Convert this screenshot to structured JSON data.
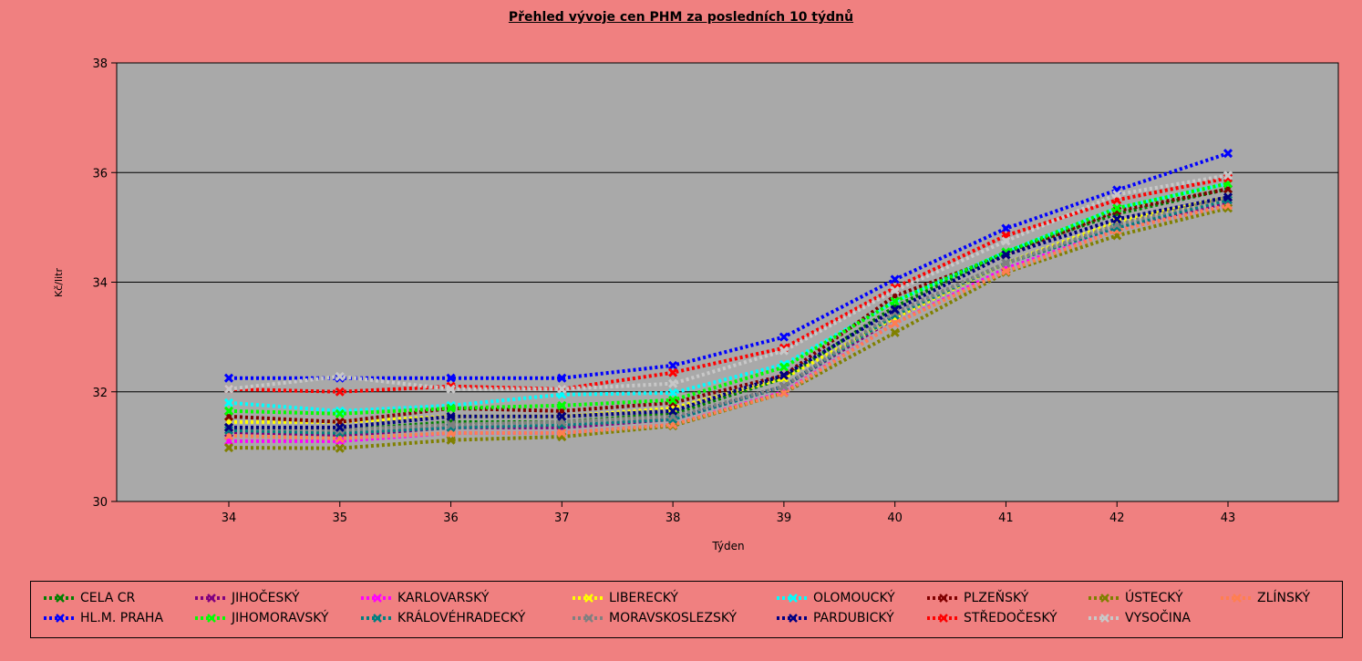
{
  "chart_data": {
    "type": "line",
    "title": "Přehled vývoje cen PHM za posledních 10 týdnů",
    "xlabel": "Týden",
    "ylabel": "Kč/litr",
    "x": [
      34,
      35,
      36,
      37,
      38,
      39,
      40,
      41,
      42,
      43
    ],
    "ylim": [
      30,
      38
    ],
    "yticks": [
      30,
      32,
      34,
      36,
      38
    ],
    "grid": true,
    "legend_position": "bottom",
    "series": [
      {
        "name": "CELA CR",
        "color": "#008000",
        "values": [
          31.35,
          31.3,
          31.45,
          31.45,
          31.6,
          32.25,
          33.55,
          34.55,
          35.25,
          35.7
        ]
      },
      {
        "name": "JIHOČESKÝ",
        "color": "#800080",
        "values": [
          31.25,
          31.2,
          31.35,
          31.35,
          31.5,
          32.1,
          33.35,
          34.35,
          35.0,
          35.45
        ]
      },
      {
        "name": "KARLOVARSKÝ",
        "color": "#FF00FF",
        "values": [
          31.1,
          31.1,
          31.25,
          31.25,
          31.4,
          32.0,
          33.25,
          34.25,
          34.95,
          35.4
        ]
      },
      {
        "name": "LIBERECKÝ",
        "color": "#FFFF00",
        "values": [
          31.45,
          31.45,
          31.55,
          31.55,
          31.7,
          32.25,
          33.35,
          34.35,
          35.1,
          35.55
        ]
      },
      {
        "name": "OLOMOUCKÝ",
        "color": "#00FFFF",
        "values": [
          31.8,
          31.65,
          31.75,
          31.95,
          31.98,
          32.5,
          33.65,
          34.55,
          35.35,
          35.8
        ]
      },
      {
        "name": "PLZEŇSKÝ",
        "color": "#800000",
        "values": [
          31.55,
          31.45,
          31.7,
          31.65,
          31.8,
          32.3,
          33.75,
          34.5,
          35.3,
          35.7
        ]
      },
      {
        "name": "ÚSTECKÝ",
        "color": "#808000",
        "values": [
          30.98,
          30.97,
          31.12,
          31.18,
          31.38,
          31.98,
          33.08,
          34.18,
          34.85,
          35.35
        ]
      },
      {
        "name": "ZLÍNSKÝ",
        "color": "#FF7F50",
        "values": [
          31.2,
          31.15,
          31.25,
          31.25,
          31.4,
          31.98,
          33.25,
          34.2,
          34.95,
          35.4
        ]
      },
      {
        "name": "HL.M. PRAHA",
        "color": "#0000FF",
        "values": [
          32.25,
          32.25,
          32.25,
          32.25,
          32.48,
          33.0,
          34.05,
          34.98,
          35.68,
          36.35
        ]
      },
      {
        "name": "JIHOMORAVSKÝ",
        "color": "#00FF00",
        "values": [
          31.65,
          31.6,
          31.7,
          31.75,
          31.85,
          32.45,
          33.65,
          34.55,
          35.35,
          35.8
        ]
      },
      {
        "name": "KRÁLOVÉHRADECKÝ",
        "color": "#008080",
        "values": [
          31.3,
          31.25,
          31.35,
          31.4,
          31.5,
          32.1,
          33.4,
          34.35,
          35.0,
          35.5
        ]
      },
      {
        "name": "MORAVSKOSLEZSKÝ",
        "color": "#808080",
        "values": [
          31.35,
          31.3,
          31.4,
          31.45,
          31.55,
          32.1,
          33.45,
          34.35,
          35.05,
          35.55
        ]
      },
      {
        "name": "PARDUBICKÝ",
        "color": "#000080",
        "values": [
          31.35,
          31.35,
          31.55,
          31.55,
          31.65,
          32.3,
          33.5,
          34.5,
          35.15,
          35.55
        ]
      },
      {
        "name": "STŘEDOČESKÝ",
        "color": "#FF0000",
        "values": [
          32.05,
          32.0,
          32.1,
          32.05,
          32.35,
          32.8,
          33.9,
          34.85,
          35.5,
          35.9
        ]
      },
      {
        "name": "VYSOČINA",
        "color": "#C8C8C8",
        "values": [
          32.05,
          32.28,
          32.05,
          32.05,
          32.15,
          32.75,
          33.85,
          34.75,
          35.6,
          35.95
        ]
      }
    ]
  }
}
